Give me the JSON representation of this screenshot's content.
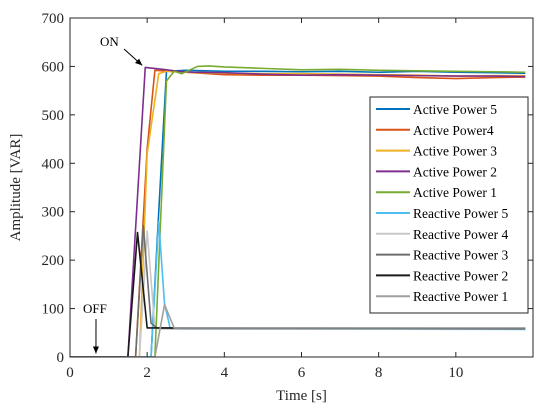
{
  "chart_data": {
    "type": "line",
    "xlabel": "Time [s]",
    "ylabel": "Amplitude [VAR]",
    "xlim": [
      0,
      12
    ],
    "ylim": [
      0,
      700
    ],
    "xticks": [
      0,
      2,
      4,
      6,
      8,
      10
    ],
    "yticks": [
      0,
      100,
      200,
      300,
      400,
      500,
      600,
      700
    ],
    "grid": false,
    "legend_position": "right",
    "annotations": [
      {
        "text": "ON",
        "target": [
          1.95,
          598
        ]
      },
      {
        "text": "OFF",
        "target": [
          0.75,
          3
        ]
      }
    ],
    "series": [
      {
        "name": "Active Power 5",
        "color": "#0072BD",
        "x": [
          0,
          1.55,
          2.1,
          2.3,
          2.5,
          3,
          4,
          5,
          6,
          7,
          8,
          9,
          10,
          11,
          11.8
        ],
        "y": [
          0,
          0,
          0,
          300,
          590,
          592,
          590,
          590,
          589,
          590,
          588,
          590,
          588,
          587,
          586
        ]
      },
      {
        "name": "Active Power4",
        "color": "#D95319",
        "x": [
          0,
          1.55,
          1.7,
          2.0,
          2.2,
          2.6,
          3,
          4,
          5,
          6,
          7,
          8,
          9,
          10,
          11,
          11.8
        ],
        "y": [
          0,
          0,
          0,
          430,
          592,
          590,
          588,
          583,
          582,
          582,
          581,
          580,
          577,
          575,
          577,
          578
        ]
      },
      {
        "name": "Active Power 3",
        "color": "#EDB120",
        "x": [
          0,
          1.6,
          1.8,
          2.0,
          2.3,
          2.5,
          3,
          4,
          5,
          6,
          7,
          8,
          9,
          10,
          11,
          11.8
        ],
        "y": [
          0,
          0,
          0,
          420,
          585,
          590,
          588,
          586,
          585,
          585,
          584,
          583,
          582,
          580,
          581,
          581
        ]
      },
      {
        "name": "Active Power 2",
        "color": "#7E2F8E",
        "x": [
          0,
          1.5,
          1.95,
          2.4,
          2.8,
          3.2,
          4,
          5,
          6,
          7,
          8,
          9,
          10,
          11,
          11.8
        ],
        "y": [
          0,
          0,
          598,
          594,
          590,
          588,
          587,
          584,
          582,
          583,
          582,
          581,
          580,
          580,
          579
        ]
      },
      {
        "name": "Active Power 1",
        "color": "#77AC30",
        "x": [
          0,
          2.2,
          2.5,
          2.7,
          2.9,
          3.3,
          3.6,
          4,
          5,
          6,
          7,
          8,
          9,
          10,
          11,
          11.8
        ],
        "y": [
          0,
          0,
          570,
          590,
          585,
          600,
          601,
          599,
          596,
          593,
          594,
          592,
          591,
          590,
          589,
          588
        ]
      },
      {
        "name": "Reactive Power 5",
        "color": "#4DBEEE",
        "x": [
          0,
          1.9,
          2.1,
          2.3,
          2.45,
          2.6,
          3,
          11.8
        ],
        "y": [
          0,
          0,
          0,
          280,
          110,
          58,
          58,
          57
        ]
      },
      {
        "name": "Reactive Power 4",
        "color": "#C8C8C8",
        "x": [
          0,
          1.8,
          2.0,
          2.2,
          2.35,
          3,
          11.8
        ],
        "y": [
          0,
          0,
          260,
          60,
          58,
          58,
          58
        ]
      },
      {
        "name": "Reactive Power 3",
        "color": "#6E6E6E",
        "x": [
          0,
          1.7,
          1.9,
          2.1,
          2.25,
          3,
          11.8
        ],
        "y": [
          0,
          0,
          272,
          70,
          60,
          59,
          59
        ]
      },
      {
        "name": "Reactive Power 2",
        "color": "#1A1A1A",
        "x": [
          0,
          1.5,
          1.75,
          2.0,
          2.8,
          11.8
        ],
        "y": [
          0,
          0,
          257,
          60,
          60,
          59
        ]
      },
      {
        "name": "Reactive Power 1",
        "color": "#A0A0A0",
        "x": [
          0,
          2.2,
          2.45,
          2.7,
          2.9,
          11.8
        ],
        "y": [
          0,
          0,
          108,
          60,
          60,
          60
        ]
      }
    ]
  }
}
